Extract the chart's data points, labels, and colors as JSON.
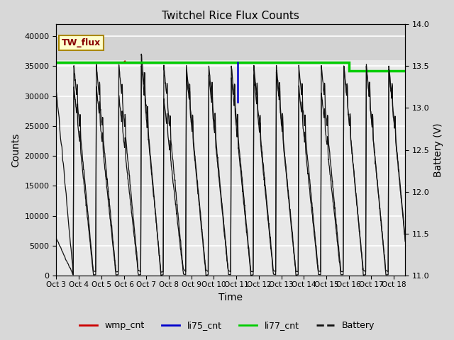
{
  "title": "Twitchel Rice Flux Counts",
  "xlabel": "Time",
  "ylabel_left": "Counts",
  "ylabel_right": "Battery (V)",
  "ylim_left": [
    0,
    42000
  ],
  "ylim_right": [
    11.0,
    14.0
  ],
  "yticks_left": [
    0,
    5000,
    10000,
    15000,
    20000,
    25000,
    30000,
    35000,
    40000
  ],
  "yticks_right": [
    11.0,
    11.5,
    12.0,
    12.5,
    13.0,
    13.5,
    14.0
  ],
  "xtick_labels": [
    "Oct 3",
    "Oct 4",
    "Oct 5",
    "Oct 6",
    "Oct 7",
    "Oct 8",
    "Oct 9",
    "Oct 10",
    "Oct 11",
    "Oct 12",
    "Oct 13",
    "Oct 14",
    "Oct 15",
    "Oct 16",
    "Oct 17",
    "Oct 18"
  ],
  "xtick_positions": [
    0,
    1,
    2,
    3,
    4,
    5,
    6,
    7,
    8,
    9,
    10,
    11,
    12,
    13,
    14,
    15
  ],
  "bg_color": "#d8d8d8",
  "plot_bg_lower": "#e8e8e8",
  "plot_bg_upper": "#c8c8c8",
  "grid_color": "#ffffff",
  "colors": {
    "wmp_cnt": "#cc0000",
    "li75_cnt": "#0000cc",
    "li77_cnt": "#00cc00",
    "battery": "#111111"
  },
  "tw_flux_label": "TW_flux",
  "tw_flux_text_color": "#880000",
  "tw_flux_bg": "#ffffcc",
  "tw_flux_border": "#aa8800",
  "fig_width": 6.4,
  "fig_height": 4.8,
  "dpi": 100
}
